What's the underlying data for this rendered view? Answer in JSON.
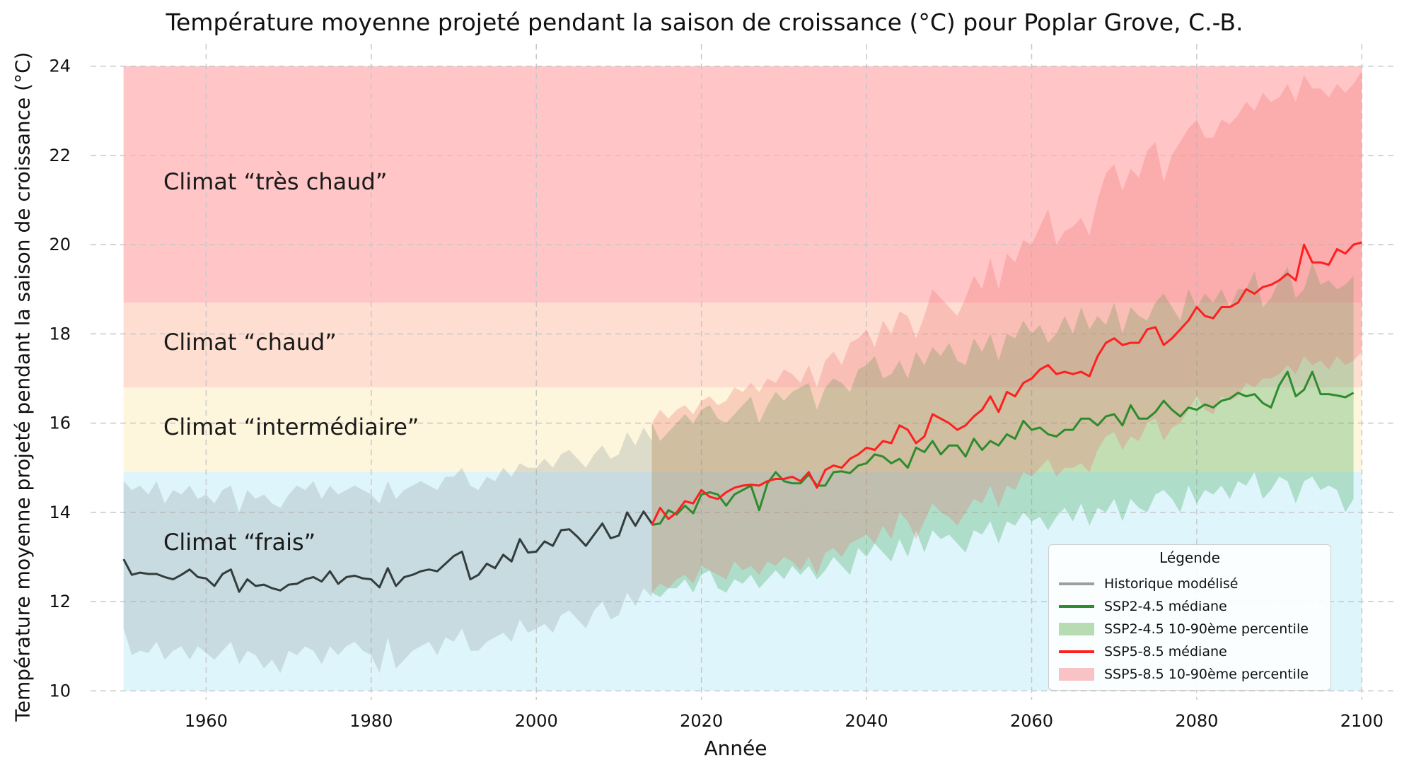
{
  "chart_data": {
    "type": "line",
    "title": "Température moyenne projeté pendant la saison de croissance (°C) pour Poplar Grove, C.-B.",
    "xlabel": "Année",
    "ylabel": "Température moyenne projeté pendant la saison de croissance (°C)",
    "xlim": [
      1946,
      2104
    ],
    "ylim": [
      9.8,
      24.5
    ],
    "x_ticks": [
      1960,
      1980,
      2000,
      2020,
      2040,
      2060,
      2080,
      2100
    ],
    "y_ticks": [
      10,
      12,
      14,
      16,
      18,
      20,
      22,
      24
    ],
    "grid": true,
    "zones": [
      {
        "label": "Climat “très chaud”",
        "y_min": 18.7,
        "y_max": 24,
        "color": "#ff9ea2"
      },
      {
        "label": "Climat “chaud”",
        "y_min": 16.8,
        "y_max": 18.7,
        "color": "#fcc8b2"
      },
      {
        "label": "Climat “intermédiaire”",
        "y_min": 14.9,
        "y_max": 16.8,
        "color": "#fcefc4"
      },
      {
        "label": "Climat “frais”",
        "y_min": 10,
        "y_max": 14.9,
        "color": "#c8eefa"
      }
    ],
    "series": [
      {
        "name": "Historique modélisé",
        "color": "#333d3d",
        "x_start": 1950,
        "values": [
          12.95,
          12.6,
          12.65,
          12.62,
          12.62,
          12.55,
          12.5,
          12.6,
          12.72,
          12.55,
          12.52,
          12.35,
          12.62,
          12.72,
          12.22,
          12.5,
          12.35,
          12.38,
          12.3,
          12.25,
          12.38,
          12.4,
          12.5,
          12.55,
          12.45,
          12.68,
          12.4,
          12.55,
          12.58,
          12.52,
          12.5,
          12.32,
          12.75,
          12.35,
          12.55,
          12.6,
          12.68,
          12.72,
          12.68,
          12.85,
          13.02,
          13.12,
          12.5,
          12.6,
          12.85,
          12.75,
          13.05,
          12.9,
          13.4,
          13.1,
          13.12,
          13.35,
          13.25,
          13.6,
          13.62,
          13.45,
          13.25,
          13.5,
          13.75,
          13.42,
          13.48,
          14.0,
          13.7,
          14.02,
          13.75
        ],
        "band_low": [
          11.4,
          10.8,
          10.9,
          10.85,
          11.1,
          10.7,
          10.9,
          11.0,
          10.7,
          11.0,
          10.85,
          10.7,
          10.9,
          11.1,
          10.6,
          10.9,
          10.8,
          10.5,
          10.7,
          10.4,
          10.9,
          10.8,
          11.0,
          10.9,
          10.6,
          11.0,
          10.8,
          11.0,
          11.1,
          10.9,
          10.8,
          10.4,
          11.2,
          10.5,
          10.7,
          10.9,
          11.0,
          11.1,
          10.8,
          11.2,
          11.1,
          11.4,
          10.9,
          10.9,
          11.1,
          11.2,
          11.3,
          11.1,
          11.6,
          11.3,
          11.4,
          11.5,
          11.3,
          11.7,
          11.8,
          11.6,
          11.4,
          11.8,
          12.0,
          11.6,
          11.7,
          12.2,
          11.9,
          12.3,
          12.1
        ],
        "band_high": [
          14.7,
          14.5,
          14.6,
          14.4,
          14.7,
          14.2,
          14.5,
          14.4,
          14.6,
          14.3,
          14.4,
          14.2,
          14.5,
          14.6,
          14.0,
          14.5,
          14.3,
          14.4,
          14.2,
          14.1,
          14.4,
          14.6,
          14.5,
          14.7,
          14.3,
          14.6,
          14.4,
          14.5,
          14.6,
          14.5,
          14.4,
          14.2,
          14.7,
          14.3,
          14.5,
          14.6,
          14.7,
          14.6,
          14.5,
          14.8,
          14.8,
          15.0,
          14.6,
          14.5,
          14.8,
          14.7,
          15.0,
          14.8,
          15.1,
          15.0,
          15.0,
          15.2,
          15.0,
          15.3,
          15.4,
          15.2,
          15.0,
          15.3,
          15.5,
          15.2,
          15.3,
          15.8,
          15.5,
          15.9,
          15.6
        ]
      },
      {
        "name": "SSP2-4.5 médiane",
        "color": "#2e8b2e",
        "x_start": 2014,
        "values": [
          13.72,
          13.75,
          14.05,
          13.95,
          14.15,
          13.98,
          14.4,
          14.45,
          14.4,
          14.15,
          14.4,
          14.5,
          14.6,
          14.05,
          14.65,
          14.9,
          14.7,
          14.65,
          14.65,
          14.85,
          14.6,
          14.6,
          14.9,
          14.92,
          14.88,
          15.05,
          15.1,
          15.3,
          15.25,
          15.1,
          15.2,
          15.0,
          15.45,
          15.35,
          15.6,
          15.3,
          15.5,
          15.5,
          15.25,
          15.65,
          15.4,
          15.6,
          15.5,
          15.75,
          15.65,
          16.05,
          15.85,
          15.9,
          15.75,
          15.7,
          15.85,
          15.85,
          16.1,
          16.1,
          15.95,
          16.15,
          16.2,
          15.95,
          16.4,
          16.1,
          16.1,
          16.25,
          16.5,
          16.3,
          16.15,
          16.35,
          16.3,
          16.42,
          16.35,
          16.5,
          16.55,
          16.68,
          16.6,
          16.65,
          16.45,
          16.35,
          16.85,
          17.15,
          16.6,
          16.75,
          17.15,
          16.65,
          16.65,
          16.62,
          16.58,
          16.68
        ],
        "band_low": [
          12.2,
          12.1,
          12.3,
          12.3,
          12.5,
          12.2,
          12.6,
          12.7,
          12.3,
          12.2,
          12.5,
          12.4,
          12.6,
          12.3,
          12.5,
          12.7,
          12.5,
          12.8,
          12.6,
          12.8,
          12.5,
          12.7,
          13.0,
          12.8,
          12.6,
          13.2,
          13.0,
          13.3,
          13.1,
          12.9,
          13.4,
          13.0,
          13.6,
          13.1,
          13.6,
          13.4,
          13.5,
          13.3,
          13.1,
          13.6,
          13.5,
          13.8,
          13.3,
          13.8,
          13.7,
          14.0,
          13.8,
          13.9,
          13.6,
          13.9,
          14.1,
          13.8,
          14.2,
          13.7,
          14.1,
          14.0,
          14.3,
          13.8,
          14.3,
          14.1,
          14.0,
          14.4,
          14.5,
          14.3,
          14.0,
          14.6,
          14.2,
          14.5,
          14.4,
          14.6,
          14.3,
          14.7,
          14.6,
          14.9,
          14.3,
          14.5,
          14.8,
          14.7,
          14.2,
          14.7,
          14.8,
          14.5,
          14.6,
          14.5,
          14.0,
          14.3
        ],
        "band_high": [
          16.0,
          15.6,
          15.8,
          16.0,
          16.2,
          16.0,
          16.3,
          16.4,
          16.1,
          16.0,
          16.2,
          16.4,
          16.6,
          16.0,
          16.4,
          16.7,
          16.5,
          16.7,
          16.8,
          16.9,
          16.3,
          16.8,
          17.0,
          16.9,
          16.7,
          17.2,
          17.3,
          17.5,
          17.0,
          17.1,
          17.4,
          17.0,
          17.6,
          17.3,
          17.7,
          17.5,
          17.8,
          17.4,
          17.3,
          17.9,
          17.6,
          18.0,
          17.4,
          18.0,
          17.9,
          18.3,
          18.0,
          18.2,
          17.8,
          18.0,
          18.4,
          18.0,
          18.6,
          18.1,
          18.4,
          18.2,
          18.7,
          18.0,
          18.6,
          18.4,
          18.3,
          18.7,
          18.9,
          18.6,
          18.3,
          19.0,
          18.6,
          18.9,
          18.7,
          19.0,
          18.6,
          19.0,
          19.0,
          19.4,
          18.6,
          18.8,
          19.2,
          19.5,
          18.8,
          19.0,
          19.6,
          19.1,
          19.2,
          19.0,
          19.1,
          19.3
        ]
      },
      {
        "name": "SSP5-8.5 médiane",
        "color": "#ff1f1f",
        "x_start": 2014,
        "values": [
          13.72,
          14.1,
          13.85,
          14.0,
          14.25,
          14.2,
          14.5,
          14.35,
          14.3,
          14.45,
          14.55,
          14.6,
          14.62,
          14.6,
          14.7,
          14.75,
          14.75,
          14.8,
          14.7,
          14.9,
          14.55,
          14.95,
          15.05,
          15.0,
          15.2,
          15.3,
          15.45,
          15.4,
          15.6,
          15.55,
          15.95,
          15.85,
          15.55,
          15.7,
          16.2,
          16.1,
          16.0,
          15.85,
          15.95,
          16.15,
          16.3,
          16.6,
          16.25,
          16.7,
          16.6,
          16.9,
          17.0,
          17.2,
          17.3,
          17.1,
          17.15,
          17.1,
          17.15,
          17.05,
          17.5,
          17.8,
          17.9,
          17.75,
          17.8,
          17.8,
          18.1,
          18.15,
          17.75,
          17.9,
          18.1,
          18.3,
          18.6,
          18.4,
          18.35,
          18.6,
          18.6,
          18.7,
          19.0,
          18.9,
          19.05,
          19.1,
          19.2,
          19.35,
          19.2,
          20.0,
          19.6,
          19.6,
          19.55,
          19.9,
          19.8,
          20.0,
          20.05
        ],
        "band_low": [
          12.2,
          12.4,
          12.3,
          12.5,
          12.6,
          12.4,
          12.8,
          12.7,
          12.6,
          12.5,
          12.9,
          12.7,
          12.8,
          12.6,
          12.9,
          12.8,
          13.0,
          12.9,
          12.7,
          13.0,
          12.6,
          13.1,
          13.2,
          13.0,
          13.3,
          13.4,
          13.5,
          13.3,
          13.7,
          13.4,
          14.0,
          13.8,
          13.4,
          13.8,
          14.2,
          14.0,
          13.9,
          13.7,
          14.0,
          14.3,
          14.2,
          14.6,
          14.1,
          14.6,
          14.5,
          14.9,
          14.8,
          15.0,
          15.2,
          14.8,
          15.0,
          15.0,
          15.1,
          14.9,
          15.4,
          15.7,
          15.8,
          15.4,
          15.7,
          15.6,
          16.0,
          16.1,
          15.6,
          15.9,
          16.0,
          16.3,
          16.6,
          16.3,
          16.2,
          16.6,
          16.5,
          16.6,
          16.9,
          16.8,
          17.0,
          17.0,
          17.1,
          17.3,
          17.1,
          17.5,
          17.3,
          17.4,
          17.2,
          17.5,
          17.3,
          17.4,
          17.6
        ],
        "band_high": [
          16.0,
          16.3,
          16.1,
          16.3,
          16.4,
          16.2,
          16.5,
          16.6,
          16.4,
          16.5,
          16.8,
          16.7,
          16.9,
          16.7,
          17.0,
          16.9,
          17.2,
          17.1,
          16.9,
          17.3,
          16.8,
          17.4,
          17.6,
          17.3,
          17.8,
          17.9,
          18.1,
          17.7,
          18.3,
          18.0,
          18.5,
          18.4,
          17.9,
          18.4,
          19.0,
          18.8,
          18.6,
          18.4,
          18.8,
          19.3,
          19.0,
          19.7,
          19.0,
          19.8,
          19.6,
          20.1,
          20.0,
          20.4,
          20.8,
          20.0,
          20.3,
          20.4,
          20.6,
          20.2,
          21.0,
          21.6,
          21.8,
          21.2,
          21.7,
          21.5,
          22.1,
          22.3,
          21.4,
          22.0,
          22.3,
          22.6,
          22.8,
          22.4,
          22.4,
          22.8,
          22.7,
          22.9,
          23.2,
          23.0,
          23.4,
          23.2,
          23.3,
          23.6,
          23.2,
          23.8,
          23.5,
          23.5,
          23.3,
          23.6,
          23.4,
          23.6,
          23.9
        ]
      }
    ]
  },
  "legend": {
    "title": "Légende",
    "items": [
      {
        "label": "Historique modélisé",
        "kind": "line",
        "color": "#9e9e9e"
      },
      {
        "label": "SSP2-4.5 médiane",
        "kind": "line",
        "color": "#2e8b2e"
      },
      {
        "label": "SSP2-4.5 10-90ème percentile",
        "kind": "patch",
        "color": "#b7dcb4"
      },
      {
        "label": "SSP5-8.5 médiane",
        "kind": "line",
        "color": "#ff1f1f"
      },
      {
        "label": "SSP5-8.5 10-90ème percentile",
        "kind": "patch",
        "color": "#f9c3c6"
      }
    ]
  },
  "band_colors": {
    "historical": "#9aa4a6",
    "ssp245": "#4caf5c",
    "ssp585": "#f26a6a"
  }
}
